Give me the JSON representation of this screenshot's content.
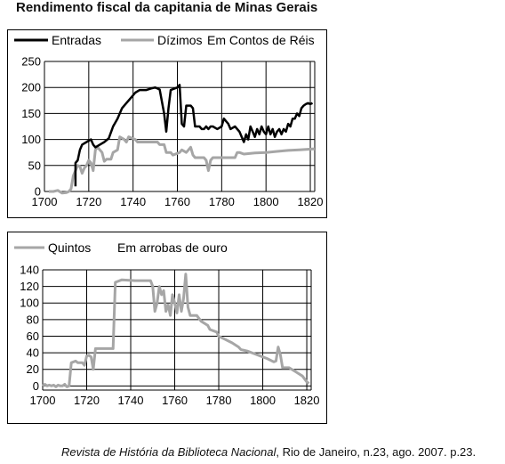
{
  "title": "Rendimento fiscal da capitania de Minas Gerais",
  "source": {
    "journal": "Revista de História da Biblioteca Nacional",
    "details": ", Rio de Janeiro, n.23, ago. 2007. p.23."
  },
  "colors": {
    "black_series": "#000000",
    "gray_series": "#a6a6a6",
    "grid": "#000000"
  },
  "chart_data": [
    {
      "type": "line",
      "unit_label": "Em Contos de Réis",
      "xlim": [
        1700,
        1822
      ],
      "ylim": [
        0,
        250
      ],
      "x_ticks": [
        1700,
        1720,
        1740,
        1760,
        1780,
        1800,
        1820
      ],
      "y_ticks": [
        0,
        50,
        100,
        150,
        200,
        250
      ],
      "grid": true,
      "legend": "top",
      "series": [
        {
          "name": "Entradas",
          "color": "#000000",
          "points": [
            [
              1714,
              10
            ],
            [
              1714,
              55
            ],
            [
              1715,
              60
            ],
            [
              1716,
              80
            ],
            [
              1717,
              90
            ],
            [
              1719,
              95
            ],
            [
              1721,
              100
            ],
            [
              1722,
              90
            ],
            [
              1723,
              85
            ],
            [
              1725,
              90
            ],
            [
              1727,
              95
            ],
            [
              1729,
              102
            ],
            [
              1731,
              125
            ],
            [
              1733,
              140
            ],
            [
              1735,
              160
            ],
            [
              1737,
              170
            ],
            [
              1739,
              180
            ],
            [
              1741,
              190
            ],
            [
              1743,
              195
            ],
            [
              1746,
              195
            ],
            [
              1748,
              198
            ],
            [
              1750,
              200
            ],
            [
              1752,
              196
            ],
            [
              1754,
              150
            ],
            [
              1755,
              115
            ],
            [
              1756,
              160
            ],
            [
              1757,
              195
            ],
            [
              1760,
              200
            ],
            [
              1761,
              205
            ],
            [
              1762,
              130
            ],
            [
              1763,
              125
            ],
            [
              1764,
              165
            ],
            [
              1766,
              165
            ],
            [
              1767,
              160
            ],
            [
              1768,
              125
            ],
            [
              1770,
              125
            ],
            [
              1771,
              120
            ],
            [
              1772,
              120
            ],
            [
              1773,
              125
            ],
            [
              1774,
              120
            ],
            [
              1775,
              125
            ],
            [
              1776,
              125
            ],
            [
              1778,
              120
            ],
            [
              1780,
              125
            ],
            [
              1781,
              140
            ],
            [
              1783,
              130
            ],
            [
              1784,
              120
            ],
            [
              1786,
              125
            ],
            [
              1788,
              115
            ],
            [
              1790,
              95
            ],
            [
              1791,
              110
            ],
            [
              1792,
              100
            ],
            [
              1793,
              125
            ],
            [
              1794,
              115
            ],
            [
              1795,
              105
            ],
            [
              1796,
              120
            ],
            [
              1797,
              110
            ],
            [
              1798,
              125
            ],
            [
              1799,
              115
            ],
            [
              1800,
              110
            ],
            [
              1801,
              125
            ],
            [
              1802,
              110
            ],
            [
              1803,
              120
            ],
            [
              1804,
              105
            ],
            [
              1805,
              115
            ],
            [
              1806,
              120
            ],
            [
              1807,
              110
            ],
            [
              1808,
              120
            ],
            [
              1809,
              115
            ],
            [
              1810,
              130
            ],
            [
              1811,
              125
            ],
            [
              1812,
              140
            ],
            [
              1813,
              140
            ],
            [
              1814,
              150
            ],
            [
              1815,
              145
            ],
            [
              1816,
              160
            ],
            [
              1817,
              165
            ],
            [
              1818,
              168
            ],
            [
              1819,
              170
            ],
            [
              1820,
              168
            ],
            [
              1821,
              170
            ]
          ]
        },
        {
          "name": "Dízimos",
          "color": "#a6a6a6",
          "points": [
            [
              1702,
              0
            ],
            [
              1704,
              0
            ],
            [
              1706,
              2
            ],
            [
              1708,
              -3
            ],
            [
              1710,
              -2
            ],
            [
              1711,
              0
            ],
            [
              1712,
              5
            ],
            [
              1713,
              30
            ],
            [
              1714,
              40
            ],
            [
              1715,
              50
            ],
            [
              1716,
              48
            ],
            [
              1717,
              35
            ],
            [
              1718,
              45
            ],
            [
              1719,
              50
            ],
            [
              1720,
              60
            ],
            [
              1721,
              55
            ],
            [
              1722,
              40
            ],
            [
              1723,
              80
            ],
            [
              1724,
              85
            ],
            [
              1726,
              75
            ],
            [
              1727,
              58
            ],
            [
              1728,
              62
            ],
            [
              1730,
              62
            ],
            [
              1731,
              75
            ],
            [
              1733,
              80
            ],
            [
              1734,
              105
            ],
            [
              1736,
              100
            ],
            [
              1737,
              95
            ],
            [
              1738,
              105
            ],
            [
              1741,
              100
            ],
            [
              1742,
              95
            ],
            [
              1751,
              95
            ],
            [
              1752,
              90
            ],
            [
              1754,
              90
            ],
            [
              1755,
              75
            ],
            [
              1757,
              75
            ],
            [
              1758,
              70
            ],
            [
              1761,
              75
            ],
            [
              1762,
              80
            ],
            [
              1764,
              75
            ],
            [
              1765,
              80
            ],
            [
              1766,
              85
            ],
            [
              1767,
              70
            ],
            [
              1768,
              65
            ],
            [
              1772,
              65
            ],
            [
              1773,
              60
            ],
            [
              1774,
              40
            ],
            [
              1775,
              60
            ],
            [
              1776,
              65
            ],
            [
              1786,
              65
            ],
            [
              1787,
              75
            ],
            [
              1788,
              75
            ],
            [
              1790,
              72
            ],
            [
              1795,
              74
            ],
            [
              1800,
              75
            ],
            [
              1805,
              77
            ],
            [
              1810,
              79
            ],
            [
              1815,
              80
            ],
            [
              1822,
              82
            ]
          ]
        }
      ]
    },
    {
      "type": "line",
      "unit_label": "Em arrobas de ouro",
      "xlim": [
        1700,
        1822
      ],
      "ylim": [
        -5,
        140
      ],
      "x_ticks": [
        1700,
        1720,
        1740,
        1760,
        1780,
        1800,
        1820
      ],
      "y_ticks": [
        0,
        20,
        40,
        60,
        80,
        100,
        120,
        140
      ],
      "y_tick_labels": [
        "0",
        "20",
        "40",
        "60",
        "80",
        "100",
        "120",
        "140"
      ],
      "grid": true,
      "legend": "top",
      "series": [
        {
          "name": "Quintos",
          "color": "#a6a6a6",
          "points": [
            [
              1700,
              0
            ],
            [
              1701,
              2
            ],
            [
              1702,
              0
            ],
            [
              1703,
              1
            ],
            [
              1704,
              0
            ],
            [
              1705,
              1
            ],
            [
              1706,
              -1
            ],
            [
              1707,
              1
            ],
            [
              1708,
              0
            ],
            [
              1709,
              0
            ],
            [
              1710,
              2
            ],
            [
              1711,
              -1
            ],
            [
              1712,
              0
            ],
            [
              1713,
              28
            ],
            [
              1715,
              30
            ],
            [
              1716,
              28
            ],
            [
              1718,
              28
            ],
            [
              1719,
              25
            ],
            [
              1720,
              36
            ],
            [
              1721,
              37
            ],
            [
              1722,
              35
            ],
            [
              1723,
              20
            ],
            [
              1724,
              45
            ],
            [
              1726,
              45
            ],
            [
              1732,
              45
            ],
            [
              1733,
              125
            ],
            [
              1736,
              128
            ],
            [
              1742,
              127
            ],
            [
              1749,
              127
            ],
            [
              1750,
              120
            ],
            [
              1751,
              90
            ],
            [
              1752,
              100
            ],
            [
              1753,
              120
            ],
            [
              1754,
              110
            ],
            [
              1755,
              115
            ],
            [
              1756,
              90
            ],
            [
              1757,
              98
            ],
            [
              1758,
              85
            ],
            [
              1759,
              110
            ],
            [
              1760,
              100
            ],
            [
              1761,
              88
            ],
            [
              1762,
              110
            ],
            [
              1763,
              90
            ],
            [
              1764,
              105
            ],
            [
              1765,
              135
            ],
            [
              1766,
              95
            ],
            [
              1767,
              85
            ],
            [
              1770,
              85
            ],
            [
              1772,
              78
            ],
            [
              1775,
              73
            ],
            [
              1776,
              68
            ],
            [
              1779,
              65
            ],
            [
              1780,
              60
            ],
            [
              1783,
              56
            ],
            [
              1786,
              52
            ],
            [
              1789,
              47
            ],
            [
              1790,
              44
            ],
            [
              1793,
              42
            ],
            [
              1796,
              39
            ],
            [
              1799,
              36
            ],
            [
              1802,
              33
            ],
            [
              1805,
              29
            ],
            [
              1806,
              30
            ],
            [
              1807,
              47
            ],
            [
              1808,
              38
            ],
            [
              1809,
              22
            ],
            [
              1812,
              22
            ],
            [
              1815,
              17
            ],
            [
              1818,
              12
            ],
            [
              1820,
              5
            ],
            [
              1821,
              3
            ]
          ]
        }
      ]
    }
  ]
}
